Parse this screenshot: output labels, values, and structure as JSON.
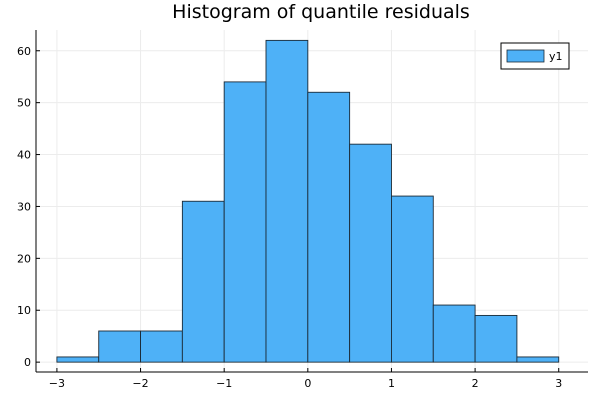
{
  "chart_data": {
    "type": "bar",
    "title": "Histogram of quantile residuals",
    "xlabel": "",
    "ylabel": "",
    "bin_edges": [
      -3,
      -2.5,
      -2,
      -1.5,
      -1,
      -0.5,
      0,
      0.5,
      1,
      1.5,
      2,
      2.5,
      3
    ],
    "series": [
      {
        "name": "y1",
        "values": [
          1,
          6,
          6,
          31,
          54,
          62,
          52,
          42,
          32,
          11,
          9,
          1
        ]
      }
    ],
    "xlim": [
      -3.25,
      3.35
    ],
    "ylim": [
      -1.9,
      64
    ],
    "xticks": [
      -3,
      -2,
      -1,
      0,
      1,
      2,
      3
    ],
    "xtick_labels": [
      "−3",
      "−2",
      "−1",
      "0",
      "1",
      "2",
      "3"
    ],
    "yticks": [
      0,
      10,
      20,
      30,
      40,
      50,
      60
    ],
    "ytick_labels": [
      "0",
      "10",
      "20",
      "30",
      "40",
      "50",
      "60"
    ],
    "grid": true,
    "legend_position": "top-right",
    "colors": {
      "bar_fill": "#4eb1f7",
      "bar_stroke": "#1b2a36",
      "grid": "#ececec",
      "axis": "#000000"
    }
  }
}
